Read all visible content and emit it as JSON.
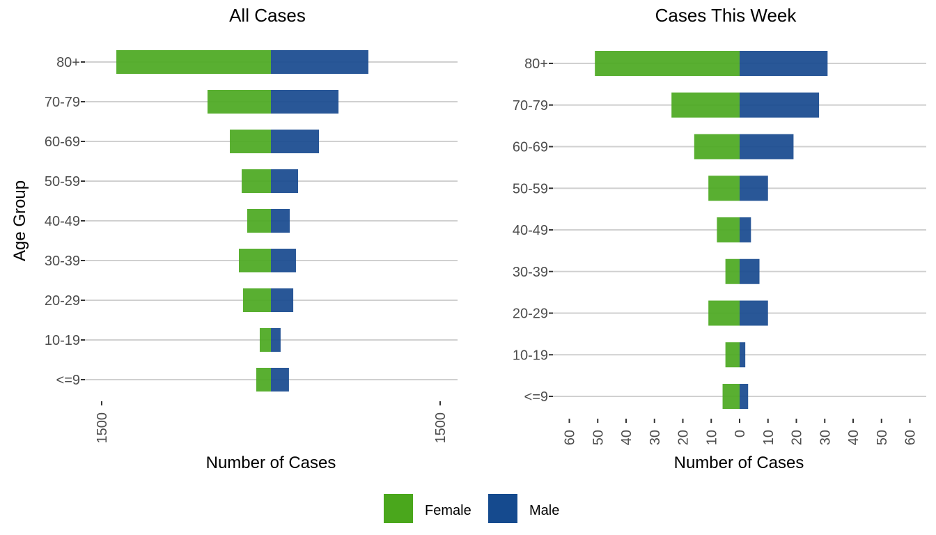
{
  "colors": {
    "female_bar": "#4ba81f",
    "male_bar": "#17498e",
    "female_legend": "#4aa71c",
    "male_legend": "#154a8e",
    "bar_opacity": 0.92
  },
  "chart_data": [
    {
      "type": "bar",
      "orientation": "horizontal-diverging",
      "title": "All Cases",
      "xlabel": "Number of Cases",
      "ylabel": "Age Group",
      "categories": [
        "80+",
        "70-79",
        "60-69",
        "50-59",
        "40-49",
        "30-39",
        "20-29",
        "10-19",
        "<=9"
      ],
      "series": [
        {
          "name": "Female",
          "values": [
            1370,
            562,
            364,
            259,
            210,
            284,
            247,
            99,
            130
          ]
        },
        {
          "name": "Male",
          "values": [
            864,
            599,
            426,
            241,
            167,
            222,
            198,
            86,
            160
          ]
        }
      ],
      "xlim": [
        -1600,
        1650
      ],
      "xticks": [
        -1500,
        1500
      ],
      "xtick_labels": [
        "1500",
        "1500"
      ],
      "grid": "horizontal-major",
      "legend": "bottom"
    },
    {
      "type": "bar",
      "orientation": "horizontal-diverging",
      "title": "Cases This Week",
      "xlabel": "Number of Cases",
      "ylabel": "",
      "categories": [
        "80+",
        "70-79",
        "60-69",
        "50-59",
        "40-49",
        "30-39",
        "20-29",
        "10-19",
        "<=9"
      ],
      "series": [
        {
          "name": "Female",
          "values": [
            51,
            24,
            16,
            11,
            8,
            5,
            11,
            5,
            6
          ]
        },
        {
          "name": "Male",
          "values": [
            31,
            28,
            19,
            10,
            4,
            7,
            10,
            2,
            3
          ]
        }
      ],
      "xlim": [
        -66,
        66
      ],
      "xticks": [
        -60,
        -50,
        -40,
        -30,
        -20,
        -10,
        0,
        10,
        20,
        30,
        40,
        50,
        60
      ],
      "xtick_labels": [
        "60",
        "50",
        "40",
        "30",
        "20",
        "10",
        "0",
        "10",
        "20",
        "30",
        "40",
        "50",
        "60"
      ],
      "grid": "horizontal-major",
      "legend": "bottom"
    }
  ],
  "legend": {
    "items": [
      {
        "label": "Female",
        "color_key": "female_legend"
      },
      {
        "label": "Male",
        "color_key": "male_legend"
      }
    ]
  }
}
